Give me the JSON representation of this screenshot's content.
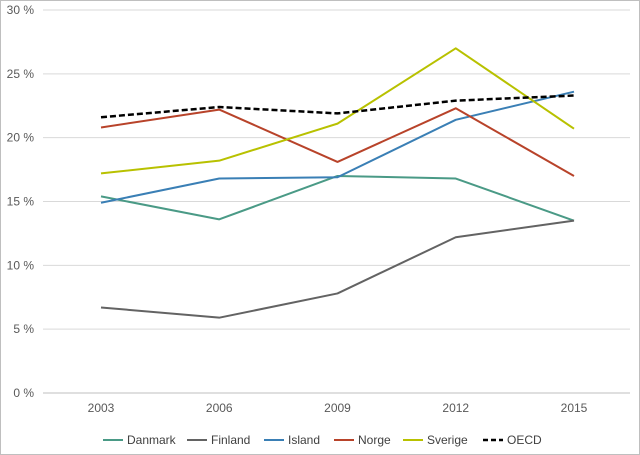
{
  "chart_data": {
    "type": "line",
    "title": "",
    "xlabel": "",
    "ylabel": "",
    "categories": [
      "2003",
      "2006",
      "2009",
      "2012",
      "2015"
    ],
    "ylim": [
      0,
      30
    ],
    "ytick_values": [
      0,
      5,
      10,
      15,
      20,
      25,
      30
    ],
    "ytick_labels": [
      "0 %",
      "5 %",
      "10 %",
      "15 %",
      "20 %",
      "25 %",
      "30 %"
    ],
    "grid": "horizontal",
    "legend_position": "bottom",
    "series": [
      {
        "name": "Danmark",
        "color": "#4a9a86",
        "dash": "solid",
        "values": [
          15.4,
          13.6,
          17.0,
          16.8,
          13.5
        ]
      },
      {
        "name": "Finland",
        "color": "#636363",
        "dash": "solid",
        "values": [
          6.7,
          5.9,
          7.8,
          12.2,
          13.5
        ]
      },
      {
        "name": "Island",
        "color": "#3a7fb5",
        "dash": "solid",
        "values": [
          14.9,
          16.8,
          16.9,
          21.4,
          23.6
        ]
      },
      {
        "name": "Norge",
        "color": "#b8432a",
        "dash": "solid",
        "values": [
          20.8,
          22.2,
          18.1,
          22.3,
          17.0
        ]
      },
      {
        "name": "Sverige",
        "color": "#b8c100",
        "dash": "solid",
        "values": [
          17.2,
          18.2,
          21.1,
          27.0,
          20.7
        ]
      },
      {
        "name": "OECD",
        "color": "#000000",
        "dash": "dashed",
        "values": [
          21.6,
          22.4,
          21.9,
          22.9,
          23.3
        ]
      }
    ]
  }
}
